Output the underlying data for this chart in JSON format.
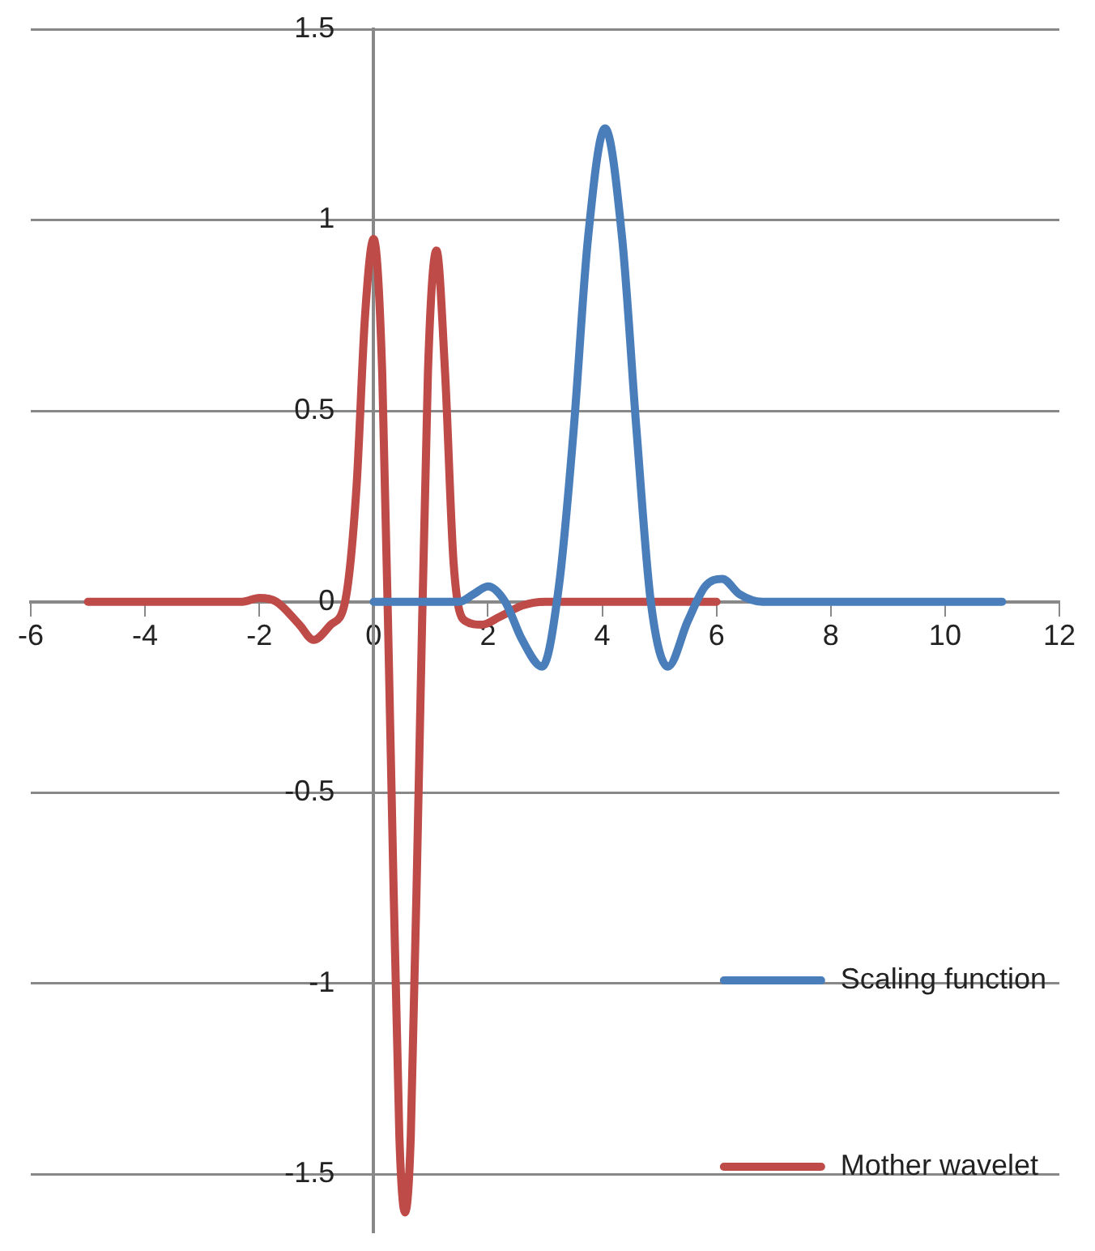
{
  "chart_data": {
    "type": "line",
    "xlim": [
      -6,
      12
    ],
    "xticks": [
      -6,
      -4,
      -2,
      0,
      2,
      4,
      6,
      8,
      10,
      12
    ],
    "ylim": [
      -1.65,
      1.5
    ],
    "yticks": [
      -1.5,
      -1,
      -0.5,
      0,
      0.5,
      1,
      1.5
    ],
    "grid": "y",
    "legend": "bottom right",
    "marker": "none",
    "line_style": "solid",
    "series": [
      {
        "name": "Scaling function",
        "color": "#4a7ebb",
        "x": [
          0,
          1,
          1.5,
          1.75,
          2,
          2.3,
          2.6,
          2.95,
          3.25,
          3.5,
          3.75,
          4.05,
          4.35,
          4.6,
          4.85,
          5.15,
          5.5,
          5.8,
          6.1,
          6.4,
          6.8,
          8,
          11
        ],
        "values": [
          0,
          0,
          0,
          0.02,
          0.04,
          0,
          -0.1,
          -0.17,
          0.05,
          0.45,
          0.95,
          1.24,
          0.95,
          0.45,
          0,
          -0.17,
          -0.05,
          0.04,
          0.06,
          0.02,
          0,
          0,
          0
        ]
      },
      {
        "name": "Mother wavelet",
        "color": "#be4b48",
        "x": [
          -5,
          -3,
          -2.3,
          -2,
          -1.7,
          -1.3,
          -1.05,
          -0.75,
          -0.5,
          -0.3,
          -0.15,
          0,
          0.15,
          0.3,
          0.45,
          0.55,
          0.65,
          0.8,
          0.95,
          1.1,
          1.25,
          1.4,
          1.6,
          1.9,
          2.2,
          2.6,
          3,
          4,
          5,
          6
        ],
        "values": [
          0,
          0,
          0,
          0.01,
          0,
          -0.06,
          -0.1,
          -0.06,
          0,
          0.3,
          0.75,
          0.95,
          0.6,
          -0.4,
          -1.4,
          -1.6,
          -1.4,
          -0.4,
          0.6,
          0.92,
          0.6,
          0.1,
          -0.05,
          -0.06,
          -0.04,
          -0.01,
          0,
          0,
          0,
          0
        ]
      }
    ]
  }
}
